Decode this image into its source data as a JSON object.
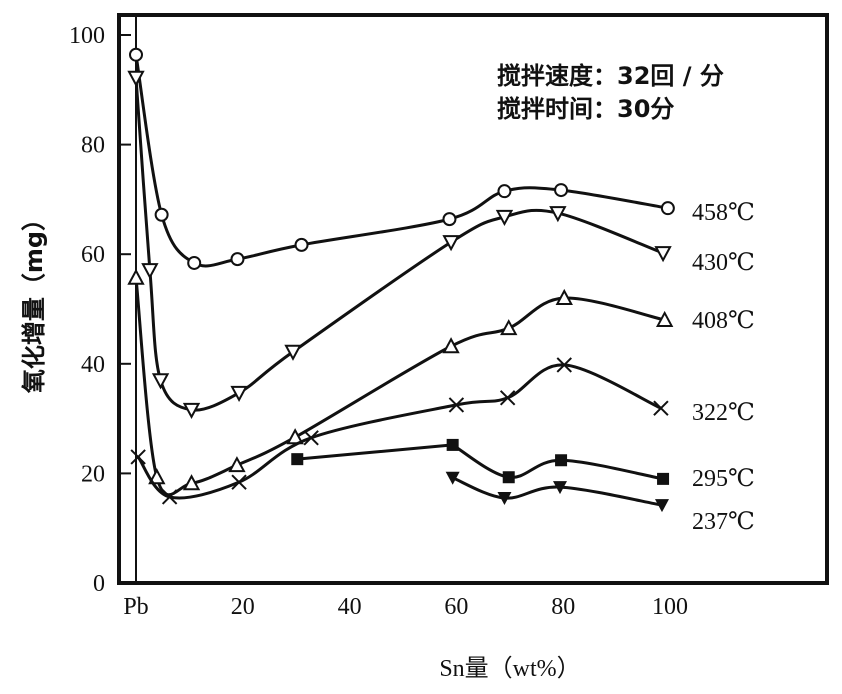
{
  "chart_data": {
    "type": "line",
    "title": "",
    "xlabel": "Sn量（wt%）",
    "ylabel": "氧化增量（mg）",
    "xlim": [
      0,
      100
    ],
    "ylim": [
      0,
      100
    ],
    "x_ticks": [
      {
        "value": 0,
        "label": "Pb"
      },
      {
        "value": 20,
        "label": "20"
      },
      {
        "value": 40,
        "label": "40"
      },
      {
        "value": 60,
        "label": "60"
      },
      {
        "value": 80,
        "label": "80"
      },
      {
        "value": 100,
        "label": "100"
      }
    ],
    "y_ticks": [
      0,
      20,
      40,
      60,
      80,
      100
    ],
    "annotations": [
      "搅拌速度：32回 / 分",
      "搅拌时间：30分"
    ],
    "grid": false,
    "series": [
      {
        "name": "458℃",
        "marker": "circle-open",
        "x": [
          0,
          4.8,
          10.9,
          19,
          31,
          58.7,
          69,
          79.6,
          99.6
        ],
        "y": [
          96.4,
          67.2,
          58.4,
          59.1,
          61.7,
          66.4,
          71.5,
          71.7,
          68.4
        ]
      },
      {
        "name": "430℃",
        "marker": "triangle-down-open",
        "x": [
          0,
          2.6,
          4.6,
          10.4,
          19.3,
          29.4,
          59,
          69,
          79,
          98.7
        ],
        "y": [
          92.2,
          57.1,
          37,
          31.6,
          34.7,
          42.2,
          62.2,
          66.8,
          67.5,
          60.2
        ]
      },
      {
        "name": "408℃",
        "marker": "triangle-up-open",
        "x": [
          0,
          3.9,
          10.4,
          18.9,
          29.8,
          59,
          69.8,
          80.2,
          99
        ],
        "y": [
          55.7,
          19.3,
          18.2,
          21.5,
          26.6,
          43.2,
          46.5,
          52,
          48
        ]
      },
      {
        "name": "322℃",
        "marker": "cross",
        "x": [
          0.4,
          6.3,
          19.3,
          32.8,
          60,
          69.6,
          80.2,
          98.3
        ],
        "y": [
          23,
          15.7,
          18.4,
          26.5,
          32.5,
          33.8,
          39.8,
          31.9
        ]
      },
      {
        "name": "295℃",
        "marker": "square-filled",
        "x": [
          30.2,
          59.3,
          69.8,
          79.6,
          98.7
        ],
        "y": [
          22.6,
          25.2,
          19.3,
          22.4,
          19
        ]
      },
      {
        "name": "237℃",
        "marker": "triangle-down-filled",
        "x": [
          59.3,
          69,
          79.4,
          98.5
        ],
        "y": [
          19.2,
          15.5,
          17.5,
          14.2
        ]
      }
    ]
  }
}
